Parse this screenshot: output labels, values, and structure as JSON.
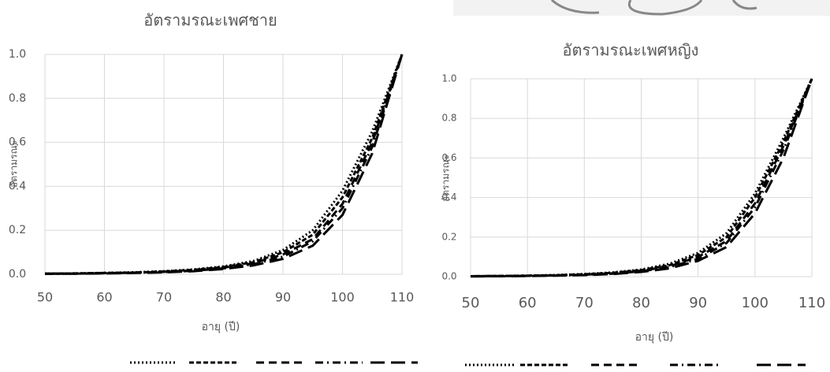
{
  "chart_data": [
    {
      "type": "line",
      "title": "อัตรามรณะเพศชาย",
      "x_label": "อายุ (ปี)",
      "y_label": "อัตรามรณะ",
      "x": [
        50,
        55,
        60,
        65,
        70,
        75,
        80,
        85,
        90,
        95,
        100,
        105,
        110
      ],
      "series": [
        {
          "color": "#000000",
          "dash": "2,3",
          "values": [
            0.003,
            0.004,
            0.006,
            0.009,
            0.014,
            0.022,
            0.036,
            0.06,
            0.11,
            0.2,
            0.38,
            0.65,
            1.0
          ]
        },
        {
          "color": "#000000",
          "dash": "6,3",
          "values": [
            0.003,
            0.004,
            0.006,
            0.008,
            0.013,
            0.02,
            0.033,
            0.055,
            0.1,
            0.18,
            0.35,
            0.62,
            1.0
          ]
        },
        {
          "color": "#000000",
          "dash": "10,6",
          "values": [
            0.002,
            0.003,
            0.005,
            0.007,
            0.011,
            0.018,
            0.03,
            0.05,
            0.09,
            0.16,
            0.32,
            0.6,
            1.0
          ]
        },
        {
          "color": "#000000",
          "dash": "10,5,2,5",
          "values": [
            0.002,
            0.003,
            0.005,
            0.007,
            0.01,
            0.016,
            0.027,
            0.045,
            0.08,
            0.15,
            0.3,
            0.58,
            1.0
          ]
        },
        {
          "color": "#000000",
          "dash": "18,8",
          "values": [
            0.002,
            0.003,
            0.004,
            0.006,
            0.009,
            0.014,
            0.024,
            0.04,
            0.07,
            0.13,
            0.27,
            0.55,
            1.0
          ]
        }
      ],
      "xlim": [
        50,
        110
      ],
      "xticks": [
        50,
        60,
        70,
        80,
        90,
        100,
        110
      ],
      "ylim": [
        0,
        1
      ],
      "yticks": [
        {
          "value": 0,
          "label": "0.0"
        },
        0.2,
        0.4,
        0.6,
        0.8,
        {
          "value": 1,
          "label": "1.0"
        }
      ],
      "grid": true
    },
    {
      "type": "line",
      "title": "อัตรามรณะเพศหญิง",
      "x_label": "อายุ (ปี)",
      "y_label": "อัตรามรณะ",
      "x": [
        50,
        55,
        60,
        65,
        70,
        75,
        80,
        85,
        90,
        95,
        100,
        105,
        110
      ],
      "series": [
        {
          "color": "#000000",
          "dash": "2,3",
          "values": [
            0.002,
            0.003,
            0.005,
            0.008,
            0.013,
            0.021,
            0.036,
            0.065,
            0.12,
            0.22,
            0.42,
            0.7,
            1.0
          ]
        },
        {
          "color": "#000000",
          "dash": "6,3",
          "values": [
            0.002,
            0.003,
            0.005,
            0.007,
            0.012,
            0.019,
            0.033,
            0.058,
            0.11,
            0.2,
            0.4,
            0.68,
            1.0
          ]
        },
        {
          "color": "#000000",
          "dash": "10,6",
          "values": [
            0.002,
            0.003,
            0.004,
            0.006,
            0.01,
            0.017,
            0.03,
            0.052,
            0.1,
            0.18,
            0.37,
            0.66,
            1.0
          ]
        },
        {
          "color": "#000000",
          "dash": "10,5,2,5",
          "values": [
            0.002,
            0.003,
            0.004,
            0.006,
            0.009,
            0.015,
            0.027,
            0.048,
            0.09,
            0.17,
            0.35,
            0.64,
            1.0
          ]
        },
        {
          "color": "#000000",
          "dash": "18,8",
          "values": [
            0.001,
            0.002,
            0.003,
            0.005,
            0.008,
            0.013,
            0.024,
            0.042,
            0.08,
            0.15,
            0.32,
            0.6,
            1.0
          ]
        }
      ],
      "xlim": [
        50,
        110
      ],
      "xticks": [
        50,
        60,
        70,
        80,
        90,
        100,
        110
      ],
      "ylim": [
        0,
        1
      ],
      "yticks": [
        {
          "value": 0,
          "label": "0.0"
        },
        0.2,
        0.4,
        0.6,
        0.8,
        {
          "value": 1,
          "label": "1.0"
        }
      ],
      "grid": true
    }
  ]
}
